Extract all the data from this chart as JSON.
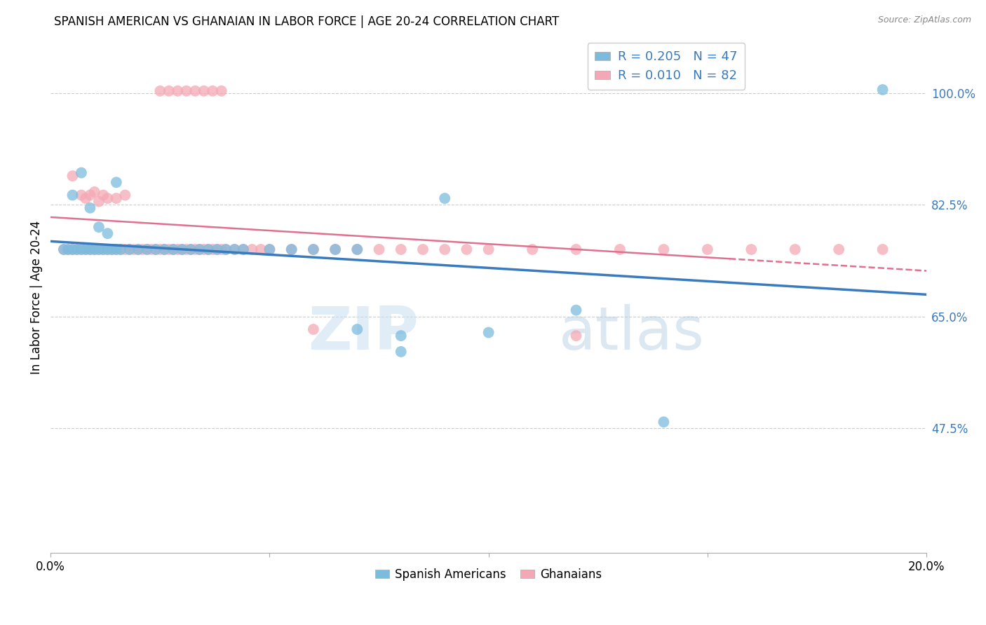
{
  "title": "SPANISH AMERICAN VS GHANAIAN IN LABOR FORCE | AGE 20-24 CORRELATION CHART",
  "source": "Source: ZipAtlas.com",
  "ylabel": "In Labor Force | Age 20-24",
  "xlim": [
    0.0,
    0.2
  ],
  "ylim": [
    0.28,
    1.08
  ],
  "yticks": [
    0.475,
    0.65,
    0.825,
    1.0
  ],
  "ytick_labels": [
    "47.5%",
    "65.0%",
    "82.5%",
    "100.0%"
  ],
  "xticks": [
    0.0,
    0.05,
    0.1,
    0.15,
    0.2
  ],
  "xtick_labels": [
    "0.0%",
    "",
    "",
    "",
    "20.0%"
  ],
  "blue_color": "#7bbcde",
  "pink_color": "#f4a8b5",
  "blue_line_color": "#3a7bbf",
  "pink_line_color": "#e07090",
  "legend_R1": "R = 0.205",
  "legend_N1": "N = 47",
  "legend_R2": "R = 0.010",
  "legend_N2": "N = 82",
  "watermark": "ZIPatlas",
  "title_fontsize": 12,
  "source_fontsize": 9,
  "blue_scatter_x": [
    0.003,
    0.004,
    0.005,
    0.006,
    0.007,
    0.008,
    0.009,
    0.01,
    0.011,
    0.012,
    0.013,
    0.014,
    0.015,
    0.016,
    0.018,
    0.02,
    0.022,
    0.024,
    0.026,
    0.028,
    0.03,
    0.032,
    0.034,
    0.036,
    0.038,
    0.04,
    0.042,
    0.044,
    0.05,
    0.055,
    0.06,
    0.065,
    0.07,
    0.08,
    0.09,
    0.1,
    0.12,
    0.14,
    0.005,
    0.007,
    0.009,
    0.011,
    0.013,
    0.015,
    0.19,
    0.07,
    0.08
  ],
  "blue_scatter_y": [
    0.755,
    0.755,
    0.755,
    0.755,
    0.755,
    0.755,
    0.755,
    0.755,
    0.755,
    0.755,
    0.755,
    0.755,
    0.755,
    0.755,
    0.755,
    0.755,
    0.755,
    0.755,
    0.755,
    0.755,
    0.755,
    0.755,
    0.755,
    0.755,
    0.755,
    0.755,
    0.755,
    0.755,
    0.755,
    0.755,
    0.755,
    0.755,
    0.755,
    0.595,
    0.835,
    0.625,
    0.66,
    0.485,
    0.84,
    0.875,
    0.82,
    0.79,
    0.78,
    0.86,
    1.005,
    0.63,
    0.62
  ],
  "pink_scatter_x": [
    0.003,
    0.004,
    0.005,
    0.006,
    0.007,
    0.008,
    0.009,
    0.01,
    0.011,
    0.012,
    0.013,
    0.014,
    0.015,
    0.016,
    0.017,
    0.018,
    0.019,
    0.02,
    0.021,
    0.022,
    0.023,
    0.024,
    0.025,
    0.026,
    0.027,
    0.028,
    0.029,
    0.03,
    0.031,
    0.032,
    0.033,
    0.034,
    0.035,
    0.036,
    0.037,
    0.038,
    0.039,
    0.04,
    0.042,
    0.044,
    0.046,
    0.048,
    0.05,
    0.055,
    0.06,
    0.065,
    0.07,
    0.075,
    0.08,
    0.085,
    0.09,
    0.095,
    0.1,
    0.11,
    0.12,
    0.13,
    0.14,
    0.15,
    0.16,
    0.17,
    0.18,
    0.19,
    0.025,
    0.027,
    0.029,
    0.031,
    0.033,
    0.035,
    0.037,
    0.039,
    0.005,
    0.007,
    0.008,
    0.009,
    0.01,
    0.011,
    0.012,
    0.013,
    0.015,
    0.017,
    0.06,
    0.12
  ],
  "pink_scatter_y": [
    0.755,
    0.755,
    0.755,
    0.755,
    0.755,
    0.755,
    0.755,
    0.755,
    0.755,
    0.755,
    0.755,
    0.755,
    0.755,
    0.755,
    0.755,
    0.755,
    0.755,
    0.755,
    0.755,
    0.755,
    0.755,
    0.755,
    0.755,
    0.755,
    0.755,
    0.755,
    0.755,
    0.755,
    0.755,
    0.755,
    0.755,
    0.755,
    0.755,
    0.755,
    0.755,
    0.755,
    0.755,
    0.755,
    0.755,
    0.755,
    0.755,
    0.755,
    0.755,
    0.755,
    0.755,
    0.755,
    0.755,
    0.755,
    0.755,
    0.755,
    0.755,
    0.755,
    0.755,
    0.755,
    0.755,
    0.755,
    0.755,
    0.755,
    0.755,
    0.755,
    0.755,
    0.755,
    1.003,
    1.003,
    1.003,
    1.003,
    1.003,
    1.003,
    1.003,
    1.003,
    0.87,
    0.84,
    0.835,
    0.84,
    0.845,
    0.83,
    0.84,
    0.835,
    0.835,
    0.84,
    0.63,
    0.62
  ]
}
